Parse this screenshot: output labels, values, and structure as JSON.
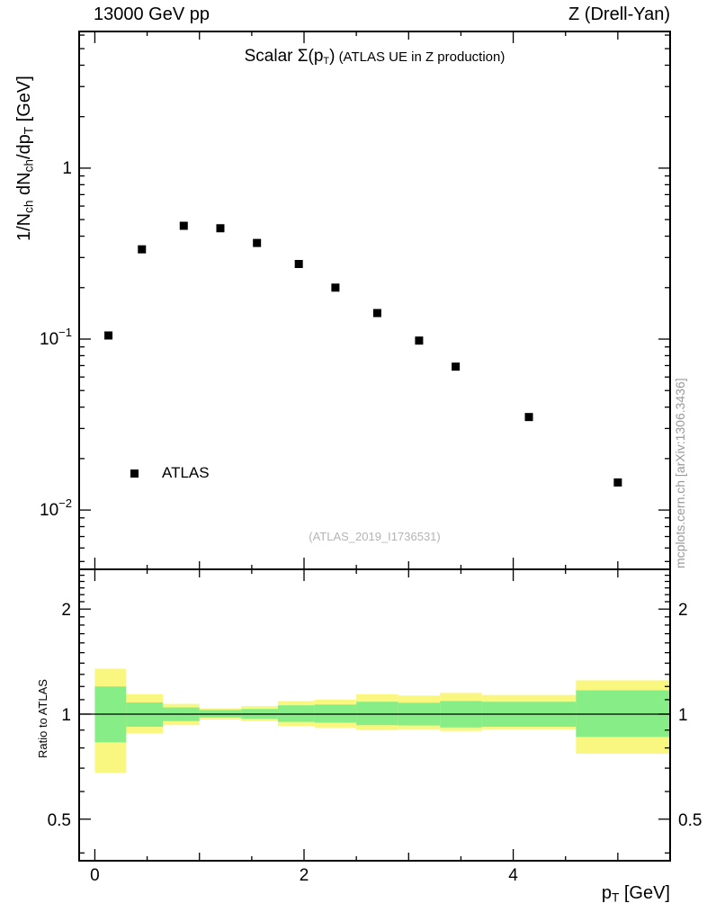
{
  "header": {
    "left": "13000 GeV pp",
    "right": "Z (Drell-Yan)"
  },
  "title": {
    "main": "Scalar Σ(p",
    "sub": "T",
    "close": ")",
    "paren": "(ATLAS UE in Z production)"
  },
  "legend": {
    "label": "ATLAS"
  },
  "watermark": "(ATLAS_2019_I1736531)",
  "side_note": "mcplots.cern.ch [arXiv:1306.3436]",
  "axes": {
    "x": {
      "label_p": "p",
      "label_sub": "T",
      "label_unit": " [GeV]",
      "tick_labels": [
        {
          "value": 0,
          "label": "0"
        },
        {
          "value": 2,
          "label": "2"
        },
        {
          "value": 4,
          "label": "4"
        }
      ]
    },
    "y_top": {
      "label_parts": {
        "p1": "1/N",
        "s1": "ch",
        "p2": " dN",
        "s2": "ch",
        "p3": "/dp",
        "s3": "T",
        "p4": " [GeV]"
      },
      "tick_labels": [
        {
          "value": 1,
          "label": "1"
        },
        {
          "value": 0.1,
          "base": "10",
          "exp": "−1"
        },
        {
          "value": 0.01,
          "base": "10",
          "exp": "−2"
        }
      ]
    },
    "y_ratio": {
      "label": "Ratio to ATLAS",
      "tick_labels": [
        {
          "value": 2,
          "label": "2"
        },
        {
          "value": 1,
          "label": "1"
        },
        {
          "value": 0.5,
          "label": "0.5"
        }
      ]
    }
  },
  "chart_data": [
    {
      "type": "scatter",
      "title": "Scalar Σ(p_T) (ATLAS UE in Z production)",
      "xlabel": "p_T [GeV]",
      "ylabel": "1/N_ch dN_ch/dp_T [GeV]",
      "xlim": [
        -0.15,
        5.5
      ],
      "ylim": [
        0.0045,
        6.3
      ],
      "xscale": "linear",
      "yscale": "log",
      "legend_position": "inside-left",
      "series": [
        {
          "name": "ATLAS",
          "marker": "filled-square",
          "color": "#000000",
          "x": [
            0.13,
            0.45,
            0.85,
            1.2,
            1.55,
            1.95,
            2.3,
            2.7,
            3.1,
            3.45,
            4.15,
            5.0
          ],
          "y": [
            0.105,
            0.335,
            0.46,
            0.445,
            0.365,
            0.275,
            0.2,
            0.142,
            0.098,
            0.069,
            0.035,
            0.0145
          ]
        }
      ]
    },
    {
      "type": "area",
      "ylabel": "Ratio to ATLAS",
      "xlim": [
        -0.15,
        5.5
      ],
      "ylim": [
        0.38,
        2.6
      ],
      "yscale": "log",
      "reference_line": 1.0,
      "band_colors": {
        "outer": "#f9f77f",
        "inner": "#87ee87"
      },
      "bands": [
        {
          "x0": 0.0,
          "x1": 0.3,
          "outer": [
            0.68,
            1.35
          ],
          "inner": [
            0.83,
            1.2
          ]
        },
        {
          "x0": 0.3,
          "x1": 0.65,
          "outer": [
            0.88,
            1.14
          ],
          "inner": [
            0.92,
            1.08
          ]
        },
        {
          "x0": 0.65,
          "x1": 1.0,
          "outer": [
            0.93,
            1.07
          ],
          "inner": [
            0.955,
            1.045
          ]
        },
        {
          "x0": 1.0,
          "x1": 1.4,
          "outer": [
            0.965,
            1.04
          ],
          "inner": [
            0.978,
            1.028
          ]
        },
        {
          "x0": 1.4,
          "x1": 1.75,
          "outer": [
            0.955,
            1.055
          ],
          "inner": [
            0.97,
            1.035
          ]
        },
        {
          "x0": 1.75,
          "x1": 2.1,
          "outer": [
            0.925,
            1.09
          ],
          "inner": [
            0.95,
            1.06
          ]
        },
        {
          "x0": 2.1,
          "x1": 2.5,
          "outer": [
            0.915,
            1.1
          ],
          "inner": [
            0.945,
            1.065
          ]
        },
        {
          "x0": 2.5,
          "x1": 2.9,
          "outer": [
            0.9,
            1.14
          ],
          "inner": [
            0.93,
            1.085
          ]
        },
        {
          "x0": 2.9,
          "x1": 3.3,
          "outer": [
            0.905,
            1.13
          ],
          "inner": [
            0.928,
            1.078
          ]
        },
        {
          "x0": 3.3,
          "x1": 3.7,
          "outer": [
            0.895,
            1.15
          ],
          "inner": [
            0.916,
            1.09
          ]
        },
        {
          "x0": 3.7,
          "x1": 4.6,
          "outer": [
            0.905,
            1.135
          ],
          "inner": [
            0.92,
            1.085
          ]
        },
        {
          "x0": 4.6,
          "x1": 5.5,
          "outer": [
            0.77,
            1.25
          ],
          "inner": [
            0.86,
            1.17
          ]
        }
      ]
    }
  ]
}
